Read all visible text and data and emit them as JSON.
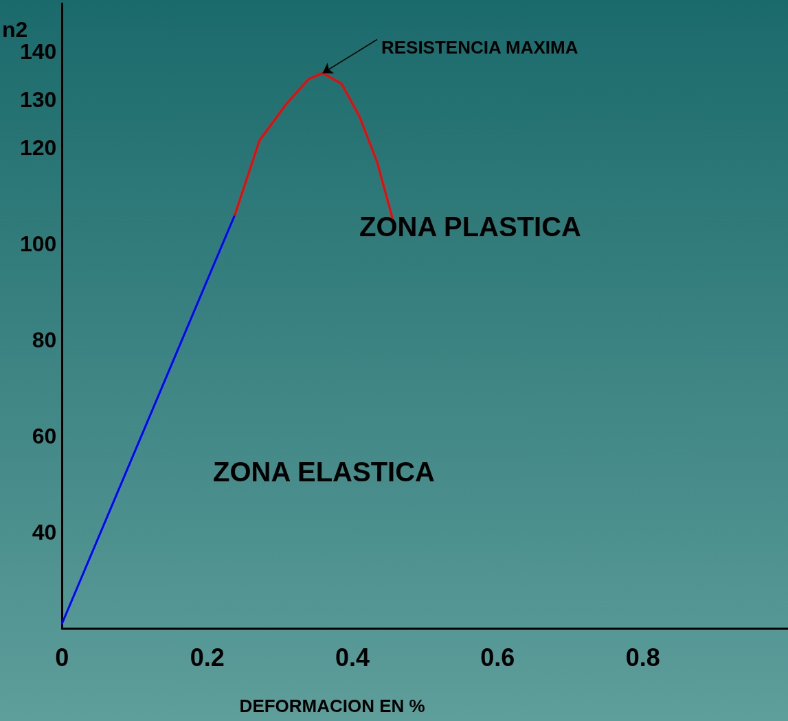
{
  "chart_data": {
    "type": "line",
    "xlabel": "DEFORMACION EN %",
    "ylabel": "n2",
    "xlim": [
      0,
      1
    ],
    "xticks": [
      0,
      0.2,
      0.4,
      0.6,
      0.8
    ],
    "ylim": [
      20,
      150
    ],
    "yticks": [
      40,
      60,
      80,
      100,
      120,
      130,
      140
    ],
    "series": [
      {
        "color": "#0000ff",
        "x": [
          0,
          0.238
        ],
        "values": [
          21,
          106
        ]
      },
      {
        "color": "#ff0000",
        "x": [
          0.238,
          0.272,
          0.31,
          0.34,
          0.359,
          0.385,
          0.41,
          0.434,
          0.455
        ],
        "values": [
          106,
          121.5,
          129.3,
          134.3,
          135.5,
          133.3,
          126.4,
          117,
          105.4
        ]
      }
    ],
    "annotations": [
      {
        "text": "RESISTENCIA MAXIMA",
        "x": 0.359,
        "y": 135.5
      },
      "ZONA PLASTICA",
      "ZONA ELASTICA"
    ],
    "grid": false
  }
}
